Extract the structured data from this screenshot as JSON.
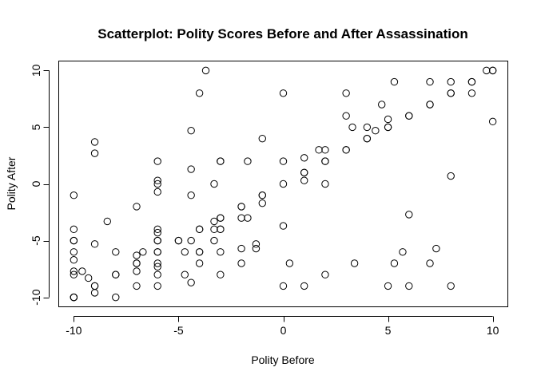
{
  "chart_data": {
    "type": "scatter",
    "title": "Scatterplot: Polity Scores Before and After Assassination",
    "xlabel": "Polity Before",
    "ylabel": "Polity After",
    "xlim": [
      -10.7,
      10.7
    ],
    "ylim": [
      -10.8,
      10.8
    ],
    "xticks": [
      -10,
      -5,
      0,
      5,
      10
    ],
    "yticks": [
      -10,
      -5,
      0,
      5,
      10
    ],
    "xtick_labels": [
      "-10",
      "-5",
      "0",
      "5",
      "10"
    ],
    "ytick_labels": [
      "-10",
      "-5",
      "0",
      "5",
      "10"
    ],
    "grid": false,
    "marker": "open-circle",
    "points": [
      [
        -10,
        -1
      ],
      [
        -10,
        -4
      ],
      [
        -10,
        -5
      ],
      [
        -10,
        -5
      ],
      [
        -10,
        -6
      ],
      [
        -10,
        -6.7
      ],
      [
        -10,
        -7.7
      ],
      [
        -10,
        -8
      ],
      [
        -10,
        -10
      ],
      [
        -10,
        -10
      ],
      [
        -10,
        -10
      ],
      [
        -9.6,
        -7.7
      ],
      [
        -9.3,
        -8.3
      ],
      [
        -9,
        3.7
      ],
      [
        -9,
        2.7
      ],
      [
        -9,
        -5.3
      ],
      [
        -9,
        -9
      ],
      [
        -9,
        -9
      ],
      [
        -9,
        -9.6
      ],
      [
        -8.4,
        -3.3
      ],
      [
        -8,
        -6
      ],
      [
        -8,
        -8
      ],
      [
        -8,
        -8
      ],
      [
        -8,
        -10
      ],
      [
        -7,
        -2
      ],
      [
        -7,
        -6.3
      ],
      [
        -7,
        -7
      ],
      [
        -7,
        -7
      ],
      [
        -7,
        -7.7
      ],
      [
        -7,
        -9
      ],
      [
        -6.7,
        -6
      ],
      [
        -6,
        2
      ],
      [
        -6,
        0.3
      ],
      [
        -6,
        0
      ],
      [
        -6,
        -0.7
      ],
      [
        -6,
        -4
      ],
      [
        -6,
        -4.3
      ],
      [
        -6,
        -5
      ],
      [
        -6,
        -5
      ],
      [
        -6,
        -6
      ],
      [
        -6,
        -6
      ],
      [
        -6,
        -7
      ],
      [
        -6,
        -7.3
      ],
      [
        -6,
        -8
      ],
      [
        -6,
        -9
      ],
      [
        -5,
        -5
      ],
      [
        -5,
        -5
      ],
      [
        -4.7,
        -6
      ],
      [
        -4.7,
        -8
      ],
      [
        -4.4,
        4.7
      ],
      [
        -4.4,
        1.3
      ],
      [
        -4.4,
        -1
      ],
      [
        -4.4,
        -5
      ],
      [
        -4.4,
        -8.7
      ],
      [
        -4,
        8
      ],
      [
        -4,
        -4
      ],
      [
        -4,
        -4
      ],
      [
        -4,
        -6
      ],
      [
        -4,
        -6
      ],
      [
        -4,
        -7
      ],
      [
        -3.7,
        10
      ],
      [
        -3.3,
        0
      ],
      [
        -3.3,
        -3.3
      ],
      [
        -3.3,
        -4
      ],
      [
        -3.3,
        -5
      ],
      [
        -3,
        2
      ],
      [
        -3,
        2
      ],
      [
        -3,
        -3
      ],
      [
        -3,
        -3
      ],
      [
        -3,
        -4
      ],
      [
        -3,
        -4
      ],
      [
        -3,
        -6
      ],
      [
        -3,
        -8
      ],
      [
        -2,
        -2
      ],
      [
        -2,
        -2
      ],
      [
        -2,
        -3
      ],
      [
        -2,
        -5.7
      ],
      [
        -2,
        -7
      ],
      [
        -1.7,
        2
      ],
      [
        -1.7,
        -3
      ],
      [
        -1.3,
        -5.3
      ],
      [
        -1.3,
        -5.7
      ],
      [
        -1,
        4
      ],
      [
        -1,
        -1
      ],
      [
        -1,
        -1
      ],
      [
        -1,
        -1.7
      ],
      [
        0,
        8
      ],
      [
        0,
        2
      ],
      [
        0,
        0
      ],
      [
        0,
        -3.7
      ],
      [
        0,
        -9
      ],
      [
        0.3,
        -7
      ],
      [
        1,
        2.3
      ],
      [
        1,
        1
      ],
      [
        1,
        1
      ],
      [
        1,
        0.3
      ],
      [
        1,
        -9
      ],
      [
        1.7,
        3
      ],
      [
        2,
        3
      ],
      [
        2,
        2
      ],
      [
        2,
        2
      ],
      [
        2,
        0
      ],
      [
        2,
        -8
      ],
      [
        3,
        8
      ],
      [
        3,
        6
      ],
      [
        3,
        3
      ],
      [
        3,
        3
      ],
      [
        3.3,
        5
      ],
      [
        3.4,
        -7
      ],
      [
        4,
        5
      ],
      [
        4,
        4
      ],
      [
        4,
        4
      ],
      [
        4.4,
        4.7
      ],
      [
        4.7,
        7
      ],
      [
        5,
        5.7
      ],
      [
        5,
        5
      ],
      [
        5,
        5
      ],
      [
        5,
        -9
      ],
      [
        5.3,
        9
      ],
      [
        5.3,
        -7
      ],
      [
        5.7,
        -6
      ],
      [
        6,
        6
      ],
      [
        6,
        6
      ],
      [
        6,
        -2.7
      ],
      [
        6,
        -9
      ],
      [
        7,
        9
      ],
      [
        7,
        7
      ],
      [
        7,
        7
      ],
      [
        7,
        -7
      ],
      [
        7.3,
        -5.7
      ],
      [
        8,
        9
      ],
      [
        8,
        8
      ],
      [
        8,
        8
      ],
      [
        8,
        0.7
      ],
      [
        8,
        -9
      ],
      [
        9,
        9
      ],
      [
        9,
        9
      ],
      [
        9,
        8
      ],
      [
        9.7,
        10
      ],
      [
        10,
        10
      ],
      [
        10,
        10
      ],
      [
        10,
        5.5
      ]
    ]
  }
}
